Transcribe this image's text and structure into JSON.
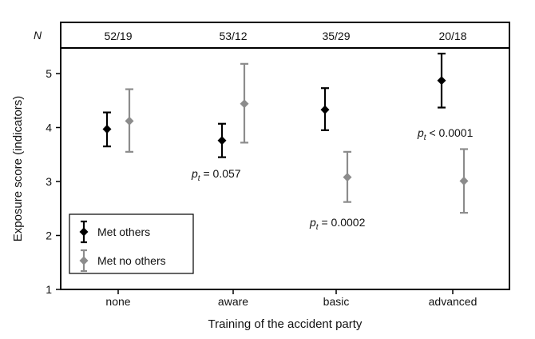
{
  "chart_data": {
    "type": "scatter",
    "xlabel": "Training of the accident party",
    "ylabel": "Exposure score (indicators)",
    "ylim": [
      1,
      5.5
    ],
    "yticks": [
      "1",
      "2",
      "3",
      "4",
      "5"
    ],
    "categories": [
      "none",
      "aware",
      "basic",
      "advanced"
    ],
    "n_label": "N",
    "n_values": [
      "52/19",
      "53/12",
      "35/29",
      "20/18"
    ],
    "series": [
      {
        "name": "Met others",
        "color": "#000000",
        "values": [
          3.97,
          3.76,
          4.33,
          4.87
        ],
        "lower": [
          3.65,
          3.45,
          3.95,
          4.37
        ],
        "upper": [
          4.28,
          4.07,
          4.73,
          5.37
        ]
      },
      {
        "name": "Met no others",
        "color": "#8c8c8c",
        "values": [
          4.12,
          4.44,
          3.08,
          3.01
        ],
        "lower": [
          3.55,
          3.72,
          2.62,
          2.42
        ],
        "upper": [
          4.71,
          5.18,
          3.55,
          3.6
        ]
      }
    ],
    "annotations": [
      {
        "sub": "t",
        "text": " = 0.057",
        "category": "aware"
      },
      {
        "sub": "t",
        "text": " = 0.0002",
        "category": "basic"
      },
      {
        "sub": "t",
        "text": " < 0.0001",
        "category": "advanced"
      }
    ],
    "annotation_symbol": "p",
    "legend": "bottom-left",
    "grid": false
  }
}
